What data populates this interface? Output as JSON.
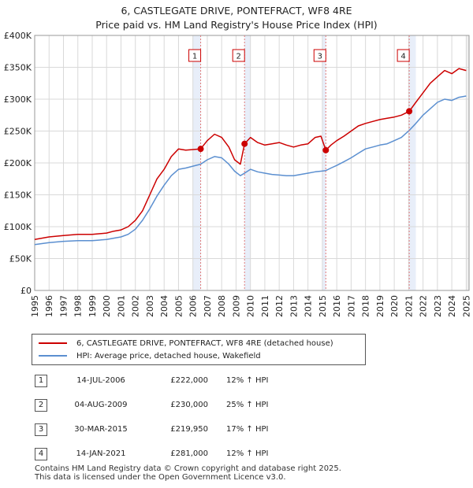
{
  "header": {
    "title": "6, CASTLEGATE DRIVE, PONTEFRACT, WF8 4RE",
    "subtitle": "Price paid vs. HM Land Registry's House Price Index (HPI)"
  },
  "colors": {
    "property_line": "#cc0000",
    "hpi_line": "#5b8fd0",
    "shade": "#e8eef9",
    "marker_line": "#e07a7a"
  },
  "legend": {
    "property_label": "6, CASTLEGATE DRIVE, PONTEFRACT, WF8 4RE (detached house)",
    "hpi_label": "HPI: Average price, detached house, Wakefield"
  },
  "transactions": [
    {
      "num": "1",
      "date": "14-JUL-2006",
      "price": "£222,000",
      "hpi": "12% ↑ HPI"
    },
    {
      "num": "2",
      "date": "04-AUG-2009",
      "price": "£230,000",
      "hpi": "25% ↑ HPI"
    },
    {
      "num": "3",
      "date": "30-MAR-2015",
      "price": "£219,950",
      "hpi": "17% ↑ HPI"
    },
    {
      "num": "4",
      "date": "14-JAN-2021",
      "price": "£281,000",
      "hpi": "12% ↑ HPI"
    }
  ],
  "footer": {
    "line1": "Contains HM Land Registry data © Crown copyright and database right 2025.",
    "line2": "This data is licensed under the Open Government Licence v3.0."
  },
  "chart_data": {
    "type": "line",
    "title": "6, CASTLEGATE DRIVE, PONTEFRACT, WF8 4RE",
    "subtitle": "Price paid vs. HM Land Registry's House Price Index (HPI)",
    "xlabel": "",
    "ylabel": "",
    "xlim": [
      1995,
      2025.2
    ],
    "ylim": [
      0,
      400000
    ],
    "grid": true,
    "legend_position": "below",
    "x_ticks": [
      1995,
      1996,
      1997,
      1998,
      1999,
      2000,
      2001,
      2002,
      2003,
      2004,
      2005,
      2006,
      2007,
      2008,
      2009,
      2010,
      2011,
      2012,
      2013,
      2014,
      2015,
      2016,
      2017,
      2018,
      2019,
      2020,
      2021,
      2022,
      2023,
      2024,
      2025
    ],
    "x_tick_labels": [
      "1995",
      "1996",
      "1997",
      "1998",
      "1999",
      "2000",
      "2001",
      "2002",
      "2003",
      "2004",
      "2005",
      "2006",
      "2007",
      "2008",
      "2009",
      "2010",
      "2011",
      "2012",
      "2013",
      "2014",
      "2015",
      "2016",
      "2017",
      "2018",
      "2019",
      "2020",
      "2021",
      "2022",
      "2023",
      "2024",
      "2025"
    ],
    "y_ticks": [
      0,
      50000,
      100000,
      150000,
      200000,
      250000,
      300000,
      350000,
      400000
    ],
    "y_tick_labels": [
      "£0",
      "£50K",
      "£100K",
      "£150K",
      "£200K",
      "£250K",
      "£300K",
      "£350K",
      "£400K"
    ],
    "shaded_periods": [
      [
        2006.0,
        2006.54
      ],
      [
        2009.59,
        2010.0
      ],
      [
        2015.0,
        2015.24
      ],
      [
        2021.04,
        2021.5
      ]
    ],
    "sales": [
      {
        "label": "1",
        "x": 2006.54,
        "y": 222000
      },
      {
        "label": "2",
        "x": 2009.59,
        "y": 230000
      },
      {
        "label": "3",
        "x": 2015.24,
        "y": 219950
      },
      {
        "label": "4",
        "x": 2021.04,
        "y": 281000
      }
    ],
    "series": [
      {
        "name": "6, CASTLEGATE DRIVE, PONTEFRACT, WF8 4RE (detached house)",
        "color": "#cc0000",
        "x": [
          1995.0,
          1996.0,
          1997.0,
          1998.0,
          1999.0,
          2000.0,
          2000.5,
          2001.0,
          2001.5,
          2002.0,
          2002.5,
          2003.0,
          2003.5,
          2004.0,
          2004.5,
          2005.0,
          2005.5,
          2006.0,
          2006.54,
          2007.0,
          2007.5,
          2008.0,
          2008.5,
          2008.9,
          2009.3,
          2009.59,
          2010.0,
          2010.5,
          2011.0,
          2011.5,
          2012.0,
          2012.5,
          2013.0,
          2013.5,
          2014.0,
          2014.5,
          2014.9,
          2015.24,
          2015.6,
          2016.0,
          2016.5,
          2017.0,
          2017.5,
          2018.0,
          2018.5,
          2019.0,
          2019.5,
          2020.0,
          2020.5,
          2021.04,
          2021.5,
          2022.0,
          2022.5,
          2023.0,
          2023.5,
          2024.0,
          2024.5,
          2025.0
        ],
        "y": [
          80000,
          84000,
          86000,
          88000,
          88000,
          90000,
          93000,
          95000,
          100000,
          110000,
          125000,
          150000,
          175000,
          190000,
          210000,
          222000,
          220000,
          221000,
          222000,
          235000,
          245000,
          240000,
          225000,
          205000,
          198000,
          230000,
          240000,
          232000,
          228000,
          230000,
          232000,
          228000,
          225000,
          228000,
          230000,
          240000,
          242000,
          219950,
          228000,
          235000,
          242000,
          250000,
          258000,
          262000,
          265000,
          268000,
          270000,
          272000,
          275000,
          281000,
          295000,
          310000,
          325000,
          335000,
          345000,
          340000,
          348000,
          345000
        ]
      },
      {
        "name": "HPI: Average price, detached house, Wakefield",
        "color": "#5b8fd0",
        "x": [
          1995.0,
          1996.0,
          1997.0,
          1998.0,
          1999.0,
          2000.0,
          2000.5,
          2001.0,
          2001.5,
          2002.0,
          2002.5,
          2003.0,
          2003.5,
          2004.0,
          2004.5,
          2005.0,
          2005.5,
          2006.0,
          2006.54,
          2007.0,
          2007.5,
          2008.0,
          2008.5,
          2008.9,
          2009.3,
          2009.59,
          2010.0,
          2010.5,
          2011.0,
          2011.5,
          2012.0,
          2012.5,
          2013.0,
          2013.5,
          2014.0,
          2014.5,
          2014.9,
          2015.24,
          2015.6,
          2016.0,
          2016.5,
          2017.0,
          2017.5,
          2018.0,
          2018.5,
          2019.0,
          2019.5,
          2020.0,
          2020.5,
          2021.04,
          2021.5,
          2022.0,
          2022.5,
          2023.0,
          2023.5,
          2024.0,
          2024.5,
          2025.0
        ],
        "y": [
          72000,
          75000,
          77000,
          78000,
          78000,
          80000,
          82000,
          84000,
          88000,
          96000,
          110000,
          128000,
          148000,
          165000,
          180000,
          190000,
          192000,
          195000,
          198000,
          205000,
          210000,
          208000,
          198000,
          187000,
          180000,
          184000,
          190000,
          186000,
          184000,
          182000,
          181000,
          180000,
          180000,
          182000,
          184000,
          186000,
          187000,
          188000,
          192000,
          196000,
          202000,
          208000,
          215000,
          222000,
          225000,
          228000,
          230000,
          235000,
          240000,
          251000,
          262000,
          275000,
          285000,
          295000,
          300000,
          298000,
          303000,
          305000
        ]
      }
    ]
  }
}
